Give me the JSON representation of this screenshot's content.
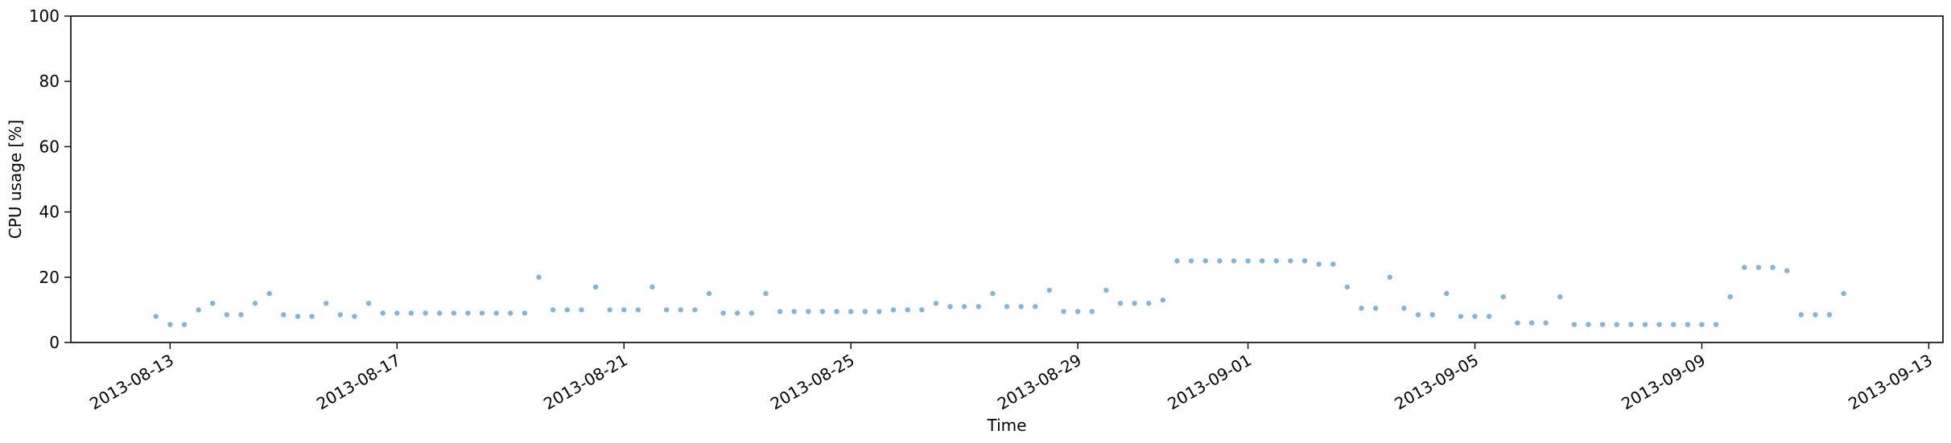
{
  "chart_data": {
    "type": "scatter",
    "title": "",
    "xlabel": "Time",
    "ylabel": "CPU usage [%]",
    "ylim": [
      0,
      100
    ],
    "xlim": [
      "2013-08-11T06:00",
      "2013-09-13T06:00"
    ],
    "yticks": [
      0,
      20,
      40,
      60,
      80,
      100
    ],
    "xticks": [
      "2013-08-13",
      "2013-08-17",
      "2013-08-21",
      "2013-08-25",
      "2013-08-29",
      "2013-09-01",
      "2013-09-05",
      "2013-09-09",
      "2013-09-13"
    ],
    "grid": false,
    "legend": "none",
    "colors": {
      "points": "#1f77b4",
      "axes": "#000000",
      "background": "#ffffff"
    },
    "series": [
      {
        "x": [
          "2013-08-12T18:00",
          "2013-08-13T00:00",
          "2013-08-13T06:00",
          "2013-08-13T12:00",
          "2013-08-13T18:00",
          "2013-08-14T00:00",
          "2013-08-14T06:00",
          "2013-08-14T12:00",
          "2013-08-14T18:00",
          "2013-08-15T00:00",
          "2013-08-15T06:00",
          "2013-08-15T12:00",
          "2013-08-15T18:00",
          "2013-08-16T00:00",
          "2013-08-16T06:00",
          "2013-08-16T12:00",
          "2013-08-16T18:00",
          "2013-08-17T00:00",
          "2013-08-17T06:00",
          "2013-08-17T12:00",
          "2013-08-17T18:00",
          "2013-08-18T00:00",
          "2013-08-18T06:00",
          "2013-08-18T12:00",
          "2013-08-18T18:00",
          "2013-08-19T00:00",
          "2013-08-19T06:00",
          "2013-08-19T12:00",
          "2013-08-19T18:00",
          "2013-08-20T00:00",
          "2013-08-20T06:00",
          "2013-08-20T12:00",
          "2013-08-20T18:00",
          "2013-08-21T00:00",
          "2013-08-21T06:00",
          "2013-08-21T12:00",
          "2013-08-21T18:00",
          "2013-08-22T00:00",
          "2013-08-22T06:00",
          "2013-08-22T12:00",
          "2013-08-22T18:00",
          "2013-08-23T00:00",
          "2013-08-23T06:00",
          "2013-08-23T12:00",
          "2013-08-23T18:00",
          "2013-08-24T00:00",
          "2013-08-24T06:00",
          "2013-08-24T12:00",
          "2013-08-24T18:00",
          "2013-08-25T00:00",
          "2013-08-25T06:00",
          "2013-08-25T12:00",
          "2013-08-25T18:00",
          "2013-08-26T00:00",
          "2013-08-26T06:00",
          "2013-08-26T12:00",
          "2013-08-26T18:00",
          "2013-08-27T00:00",
          "2013-08-27T06:00",
          "2013-08-27T12:00",
          "2013-08-27T18:00",
          "2013-08-28T00:00",
          "2013-08-28T06:00",
          "2013-08-28T12:00",
          "2013-08-28T18:00",
          "2013-08-29T00:00",
          "2013-08-29T06:00",
          "2013-08-29T12:00",
          "2013-08-29T18:00",
          "2013-08-30T00:00",
          "2013-08-30T06:00",
          "2013-08-30T12:00",
          "2013-08-30T18:00",
          "2013-08-31T00:00",
          "2013-08-31T06:00",
          "2013-08-31T12:00",
          "2013-08-31T18:00",
          "2013-09-01T00:00",
          "2013-09-01T06:00",
          "2013-09-01T12:00",
          "2013-09-01T18:00",
          "2013-09-02T00:00",
          "2013-09-02T06:00",
          "2013-09-02T12:00",
          "2013-09-02T18:00",
          "2013-09-03T00:00",
          "2013-09-03T06:00",
          "2013-09-03T12:00",
          "2013-09-03T18:00",
          "2013-09-04T00:00",
          "2013-09-04T06:00",
          "2013-09-04T12:00",
          "2013-09-04T18:00",
          "2013-09-05T00:00",
          "2013-09-05T06:00",
          "2013-09-05T12:00",
          "2013-09-05T18:00",
          "2013-09-06T00:00",
          "2013-09-06T06:00",
          "2013-09-06T12:00",
          "2013-09-06T18:00",
          "2013-09-07T00:00",
          "2013-09-07T06:00",
          "2013-09-07T12:00",
          "2013-09-07T18:00",
          "2013-09-08T00:00",
          "2013-09-08T06:00",
          "2013-09-08T12:00",
          "2013-09-08T18:00",
          "2013-09-09T00:00",
          "2013-09-09T06:00",
          "2013-09-09T12:00",
          "2013-09-09T18:00",
          "2013-09-10T00:00",
          "2013-09-10T06:00",
          "2013-09-10T12:00",
          "2013-09-10T18:00",
          "2013-09-11T00:00",
          "2013-09-11T06:00",
          "2013-09-11T12:00"
        ],
        "y": [
          8,
          5.5,
          5.5,
          10,
          12,
          8.5,
          8.5,
          12,
          15,
          8.5,
          8,
          8,
          12,
          8.5,
          8,
          12,
          9,
          9,
          9,
          9,
          9,
          9,
          9,
          9,
          9,
          9,
          9,
          20,
          10,
          10,
          10,
          17,
          10,
          10,
          10,
          17,
          10,
          10,
          10,
          15,
          9,
          9,
          9,
          15,
          9.5,
          9.5,
          9.5,
          9.5,
          9.5,
          9.5,
          9.5,
          9.5,
          10,
          10,
          10,
          12,
          11,
          11,
          11,
          15,
          11,
          11,
          11,
          16,
          9.5,
          9.5,
          9.5,
          16,
          12,
          12,
          12,
          13,
          25,
          25,
          25,
          25,
          25,
          25,
          25,
          25,
          25,
          25,
          24,
          24,
          17,
          10.5,
          10.5,
          20,
          10.5,
          8.5,
          8.5,
          15,
          8,
          8,
          8,
          14,
          6,
          6,
          6,
          14,
          5.5,
          5.5,
          5.5,
          5.5,
          5.5,
          5.5,
          5.5,
          5.5,
          5.5,
          5.5,
          5.5,
          14,
          23,
          23,
          23,
          22,
          8.5,
          8.5,
          8.5,
          15
        ]
      }
    ]
  }
}
